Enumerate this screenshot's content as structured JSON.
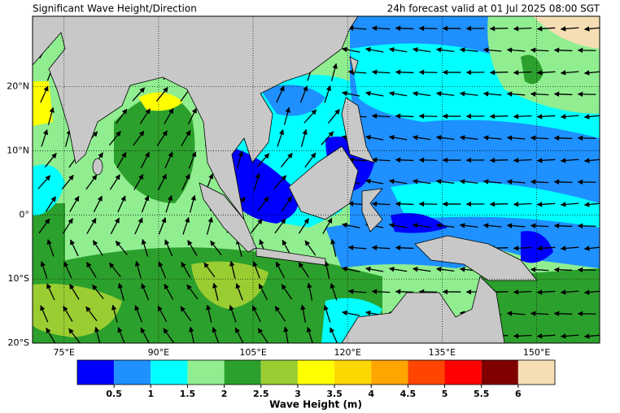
{
  "header": {
    "title": "Significant Wave Height/Direction",
    "valid": "24h forecast valid at 01 Jul 2025 08:00 SGT"
  },
  "map": {
    "xlim": [
      70,
      160
    ],
    "ylim": [
      -20,
      31
    ],
    "grid": true,
    "xticks": [
      {
        "value": 75,
        "label": "75°E"
      },
      {
        "value": 90,
        "label": "90°E"
      },
      {
        "value": 105,
        "label": "105°E"
      },
      {
        "value": 120,
        "label": "120°E"
      },
      {
        "value": 135,
        "label": "135°E"
      },
      {
        "value": 150,
        "label": "150°E"
      }
    ],
    "yticks": [
      {
        "value": 20,
        "label": "20°N"
      },
      {
        "value": 10,
        "label": "10°N"
      },
      {
        "value": 0,
        "label": "0°"
      },
      {
        "value": -10,
        "label": "10°S"
      },
      {
        "value": -20,
        "label": "20°S"
      }
    ]
  },
  "colorbar": {
    "lim": [
      0,
      6.5
    ],
    "ticks": [
      0.5,
      1,
      1.5,
      2,
      2.5,
      3,
      3.5,
      4,
      4.5,
      5,
      5.5,
      6
    ],
    "colors": [
      "#0000ff",
      "#1e90ff",
      "#00ffff",
      "#90ee90",
      "#2ca02c",
      "#9acd32",
      "#ffff00",
      "#ffd700",
      "#ffa500",
      "#ff4500",
      "#ff0000",
      "#800000",
      "#f5deb3"
    ],
    "label": "Wave Height (m)"
  }
}
